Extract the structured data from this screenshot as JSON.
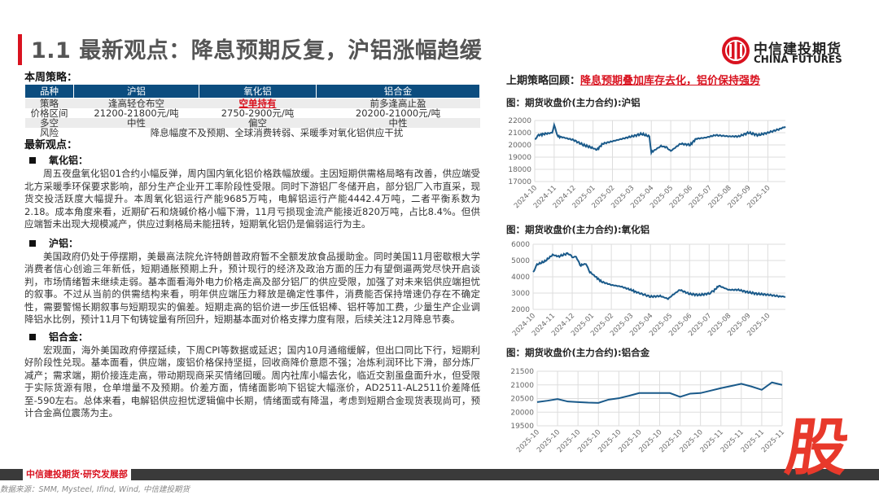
{
  "title": "1.1 最新观点：降息预期反复，沪铝涨幅趋缓",
  "logo": {
    "cn": "中信建投期货",
    "en": "CHINA FUTURES"
  },
  "strategy": {
    "heading": "本周策略：",
    "headers": [
      "品种",
      "沪铝",
      "氧化铝",
      "铝合金"
    ],
    "rows": [
      [
        "策略",
        "逢高轻仓布空",
        "空单持有",
        "前多逢高止盈"
      ],
      [
        "价格区间",
        "21200-21800元/吨",
        "2750-2900元/吨",
        "20200-21000元/吨"
      ],
      [
        "多空",
        "中性",
        "偏空",
        "中性"
      ]
    ],
    "risk_label": "风险",
    "risk": "降息幅度不及预期、全球消费转弱、采暖季对氧化铝供应干扰"
  },
  "views": {
    "heading": "最新观点：",
    "sections": [
      {
        "title": "氧化铝：",
        "text": "周五夜盘氧化铝01合约小幅反弹，周内国内氧化铝价格跌幅放缓。主因短期供需格局略有改善，供应端受北方采暖季环保要求影响，部分生产企业开工率阶段性受限。同时下游铝厂冬储开启，部分铝厂入市直采，现货交投活跃度大幅提升。本周氧化铝运行产能9685万吨，电解铝运行产能4442.4万吨，二者平衡系数为2.18。成本角度来看，近期矿石和烧碱价格小幅下滑，11月亏损现金流产能接近820万吨，占比8.4%。但供应端暂未出现大规模减产，供应过剩格局未能扭转，短期氧化铝仍是偏弱运行为主。"
      },
      {
        "title": "沪铝：",
        "text": "美国政府仍处于停摆期，美最高法院允许特朗普政府暂不全额发放食品援助金。同时美国11月密歇根大学消费者信心创逾三年新低，短期通胀预期上升，预计现行的经济及政治方面的压力有望倒逼两党尽快开启谈判，市场情绪暂未继续走弱。基本面看海外电力价格走高及部分铝厂的供应受限，加强了对未来铝供应端担忧的叙事。不过从当前的供需结构来看，明年供应端压力释放是确定性事件，消费能否保持增速仍存在不确定性，需要警惕长期叙事与短期现实的偏差。短期走高的铝价进一步压低铝棒、铝杆等加工费，少量生产企业调降铝水比例，预计11月下旬铸锭量有所回升，短期基本面对价格支撑力度有限，后续关注12月降息节奏。"
      },
      {
        "title": "铝合金：",
        "text": "宏观面，海外美国政府停摆延续，下周CPI等数据或延迟；国内10月通缩缓解，但出口同比下行，短期利好阶段性兑现。基本面看，供应端，废铝价格保持坚挺，回收商降价意愿不强；冶炼利润环比下滑，部分炼厂减产；需求端，期价接连走高，带动期现商采买情绪回暖。周内社库小幅去化，临近交割虽盘面升水，但受限于实际货源有限，仓单增量不及预期。价差方面，情绪面影响下铝锭大幅涨价，AD2511-AL2511价差降低至-590左右。总体来看，电解铝供应担忧逻辑偏中长期，情绪面或有降温，考虑到短期合金现货表现尚可，预计合金高位震荡为主。"
      }
    ]
  },
  "review": {
    "label": "上期策略回顾：",
    "text": "降息预期叠加库存去化，铝价保持强势"
  },
  "footer": {
    "dept": "中信建投期货·研究发展部",
    "source": "数据来源：SMM, Mysteel, Ifind, Wind, 中信建投期货",
    "badge": "股"
  },
  "colors": {
    "accent": "#d9121f",
    "header": "#0c4d7f",
    "line": "#1a5a8a"
  },
  "chart_data": [
    {
      "type": "line",
      "title": "图：期货收盘价(主力合约):沪铝",
      "ylim": [
        17000,
        22000
      ],
      "yticks": [
        17000,
        18000,
        19000,
        20000,
        21000,
        22000
      ],
      "xticks": [
        "2024-10",
        "2024-11",
        "2024-12",
        "2025-01",
        "2025-02",
        "2025-03",
        "2025-04",
        "2025-05",
        "2025-06",
        "2025-07",
        "2025-08",
        "2025-09",
        "2025-10"
      ],
      "x": [
        0,
        0.2,
        0.5,
        0.9,
        1.0,
        1.2,
        1.5,
        2.0,
        2.5,
        2.9,
        3.2,
        3.5,
        4.0,
        4.5,
        5.0,
        5.5,
        5.9,
        6.0,
        6.3,
        6.5,
        6.8,
        7.0,
        7.5,
        8.0,
        8.3,
        8.8,
        9.3,
        10,
        10.5,
        11,
        11.5,
        12,
        12.6,
        12.9
      ],
      "values": [
        20500,
        20800,
        20900,
        21000,
        21600,
        20700,
        20600,
        20400,
        20000,
        19800,
        19600,
        20100,
        20300,
        20500,
        20700,
        20900,
        20700,
        19400,
        19700,
        19900,
        19800,
        19500,
        20100,
        20000,
        20500,
        20600,
        20800,
        20700,
        20700,
        21000,
        20800,
        21000,
        21300,
        21500
      ]
    },
    {
      "type": "line",
      "title": "图：期货收盘价(主力合约):氧化铝",
      "ylim": [
        2000,
        6000
      ],
      "yticks": [
        2000,
        3000,
        4000,
        5000,
        6000
      ],
      "xticks": [
        "2024-10",
        "2024-11",
        "2024-12",
        "2025-01",
        "2025-02",
        "2025-03",
        "2025-04",
        "2025-05",
        "2025-06",
        "2025-07",
        "2025-08",
        "2025-09",
        "2025-10"
      ],
      "x": [
        0,
        0.2,
        0.6,
        1.0,
        1.3,
        1.8,
        2.0,
        2.2,
        2.4,
        2.7,
        2.9,
        3.2,
        3.5,
        4.0,
        4.5,
        5.0,
        5.3,
        6.0,
        6.5,
        6.9,
        7.1,
        7.5,
        8.0,
        8.5,
        9.0,
        9.2,
        9.5,
        10,
        10.5,
        11,
        11.5,
        12,
        12.6,
        12.9
      ],
      "values": [
        4300,
        4750,
        4950,
        5350,
        5250,
        5450,
        5200,
        5250,
        4700,
        4800,
        4300,
        4000,
        3700,
        3500,
        3400,
        3200,
        3050,
        2780,
        2820,
        2650,
        2850,
        3200,
        2950,
        2880,
        2980,
        3100,
        3450,
        3200,
        3200,
        3050,
        2950,
        2900,
        2800,
        2780
      ]
    },
    {
      "type": "line",
      "title": "图：期货收盘价(主力合约):铝合金",
      "ylim": [
        19500,
        21500
      ],
      "yticks": [
        19500,
        20000,
        20500,
        21000,
        21500
      ],
      "xticks": [
        "2025-10",
        "2025-10",
        "2025-10",
        "2025-10",
        "2025-10",
        "2025-10",
        "2025-10",
        "2025-10",
        "2025-10",
        "2025-11",
        "2025-11",
        "2025-11",
        "2025-11"
      ],
      "values": [
        20370,
        20420,
        20480,
        20390,
        20370,
        20350,
        20340,
        20460,
        20510,
        20600,
        20700,
        20700,
        20700,
        20700,
        20560,
        20680,
        20700,
        20790,
        20880,
        20960,
        21040,
        20940,
        20820,
        21090,
        21000
      ]
    }
  ]
}
